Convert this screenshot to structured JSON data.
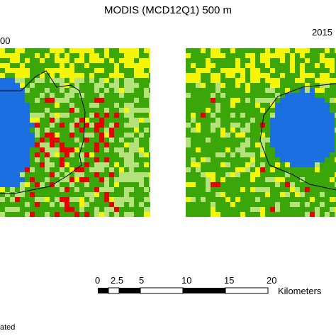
{
  "title": "MODIS (MCD12Q1) 500 m",
  "panels": [
    {
      "label": "00"
    },
    {
      "label": "2015"
    }
  ],
  "scalebar": {
    "ticks": [
      "0",
      "2.5",
      "5",
      "10",
      "15",
      "20"
    ],
    "tick_values": [
      0,
      2.5,
      5,
      10,
      15,
      20
    ],
    "unit": "Kilometers"
  },
  "footer_text": "ated",
  "colors": {
    "forest_green": "#3aa60a",
    "light_green": "#b5e27a",
    "yellow": "#f5f50a",
    "water_blue": "#1c6fe0",
    "urban_red": "#e60000",
    "boundary": "#000000"
  }
}
